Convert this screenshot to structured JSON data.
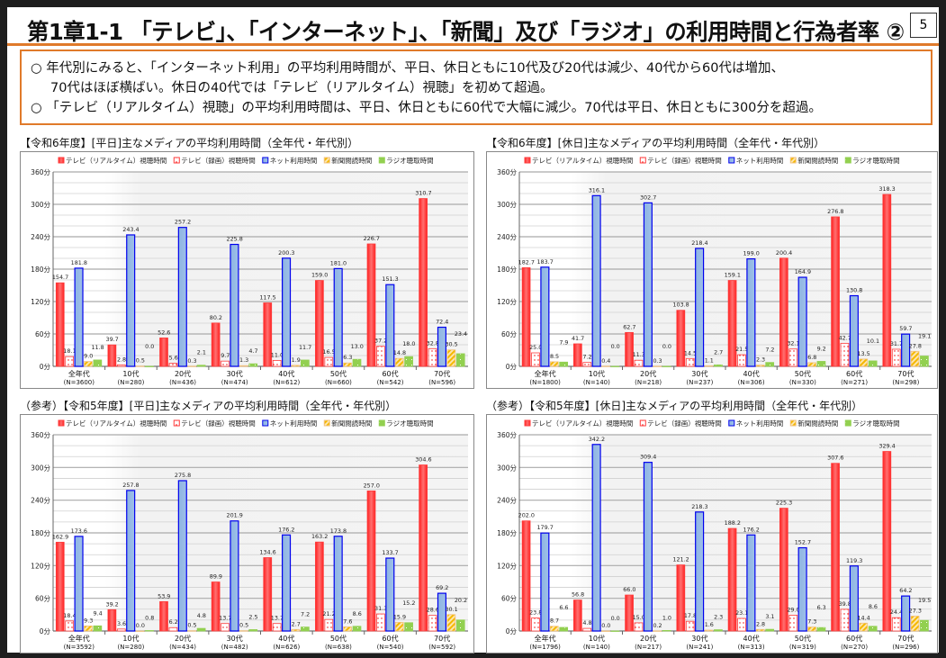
{
  "header": {
    "title": "第1章1-1 「テレビ」、「インターネット」、「新聞」及び「ラジオ」の利用時間と行為者率 ②",
    "page_number": "5"
  },
  "summary": {
    "line1": "○ 年代別にみると、「インターネット利用」の平均利用時間が、平日、休日ともに10代及び20代は減少、40代から60代は増加、",
    "line2": "70代はほぼ横ばい。休日の40代では「テレビ（リアルタイム）視聴」を初めて超過。",
    "line3": "○ 「テレビ（リアルタイム）視聴」の平均利用時間は、平日、休日ともに60代で大幅に減少。70代は平日、休日ともに300分を超過。"
  },
  "colors": {
    "accent_orange": "#e07a2a",
    "tv_realtime": "#ff3b3b",
    "tv_recorded": "#ff3b3b",
    "internet": "#8db4e2",
    "internet_border": "#0000ee",
    "newspaper": "#f5b800",
    "radio": "#92d050"
  },
  "legend": [
    "テレビ（リアルタイム）視聴時間",
    "テレビ（録画）視聴時間",
    "ネット利用時間",
    "新聞閲読時間",
    "ラジオ聴取時間"
  ],
  "chart_data": [
    {
      "type": "bar",
      "title": "【令和6年度】[平日]主なメディアの平均利用時間（全年代・年代別）",
      "categories": [
        "全年代",
        "10代",
        "20代",
        "30代",
        "40代",
        "50代",
        "60代",
        "70代"
      ],
      "category_n": [
        "(N=3600)",
        "(N=280)",
        "(N=436)",
        "(N=474)",
        "(N=612)",
        "(N=660)",
        "(N=542)",
        "(N=596)"
      ],
      "yticks": [
        "0分",
        "60分",
        "120分",
        "180分",
        "240分",
        "300分",
        "360分"
      ],
      "ylim": [
        0,
        360
      ],
      "grid": true,
      "legend_position": "top",
      "series": [
        {
          "name": "テレビ（リアルタイム）視聴時間",
          "values": [
            154.7,
            39.7,
            52.6,
            80.2,
            117.5,
            159.0,
            226.7,
            310.7
          ]
        },
        {
          "name": "テレビ（録画）視聴時間",
          "values": [
            18.1,
            2.8,
            5.6,
            9.7,
            11.0,
            16.5,
            37.2,
            32.8
          ]
        },
        {
          "name": "ネット利用時間",
          "values": [
            181.8,
            243.4,
            257.2,
            225.8,
            200.3,
            181.0,
            151.3,
            72.4
          ]
        },
        {
          "name": "新聞閲読時間",
          "values": [
            9.0,
            0.5,
            0.3,
            1.3,
            1.9,
            6.3,
            14.8,
            30.5
          ]
        },
        {
          "name": "ラジオ聴取時間",
          "values": [
            11.8,
            0.0,
            2.1,
            4.7,
            11.7,
            13.0,
            18.0,
            23.4
          ]
        }
      ]
    },
    {
      "type": "bar",
      "title": "【令和6年度】[休日]主なメディアの平均利用時間（全年代・年代別）",
      "categories": [
        "全年代",
        "10代",
        "20代",
        "30代",
        "40代",
        "50代",
        "60代",
        "70代"
      ],
      "category_n": [
        "(N=1800)",
        "(N=140)",
        "(N=218)",
        "(N=237)",
        "(N=306)",
        "(N=330)",
        "(N=271)",
        "(N=298)"
      ],
      "yticks": [
        "0分",
        "60分",
        "120分",
        "180分",
        "240分",
        "300分",
        "360分"
      ],
      "ylim": [
        0,
        360
      ],
      "grid": true,
      "legend_position": "top",
      "series": [
        {
          "name": "テレビ（リアルタイム）視聴時間",
          "values": [
            182.7,
            41.7,
            62.7,
            103.8,
            159.1,
            200.4,
            276.8,
            318.3
          ]
        },
        {
          "name": "テレビ（録画）視聴時間",
          "values": [
            25.0,
            7.2,
            11.3,
            14.5,
            21.5,
            32.1,
            42.7,
            31.7
          ]
        },
        {
          "name": "ネット利用時間",
          "values": [
            183.7,
            316.1,
            302.7,
            218.4,
            199.0,
            164.9,
            130.8,
            59.7
          ]
        },
        {
          "name": "新聞閲読時間",
          "values": [
            8.5,
            0.4,
            0.3,
            1.1,
            2.3,
            6.8,
            13.5,
            27.8
          ]
        },
        {
          "name": "ラジオ聴取時間",
          "values": [
            7.9,
            0.0,
            0.0,
            2.7,
            7.2,
            9.2,
            10.1,
            19.1
          ]
        }
      ]
    },
    {
      "type": "bar",
      "title": "（参考）【令和5年度】[平日]主なメディアの平均利用時間（全年代・年代別）",
      "categories": [
        "全年代",
        "10代",
        "20代",
        "30代",
        "40代",
        "50代",
        "60代",
        "70代"
      ],
      "category_n": [
        "(N=3592)",
        "(N=280)",
        "(N=434)",
        "(N=482)",
        "(N=626)",
        "(N=638)",
        "(N=540)",
        "(N=592)"
      ],
      "yticks": [
        "0分",
        "60分",
        "120分",
        "180分",
        "240分",
        "300分",
        "360分"
      ],
      "ylim": [
        0,
        360
      ],
      "grid": true,
      "legend_position": "top",
      "series": [
        {
          "name": "テレビ（リアルタイム）視聴時間",
          "values": [
            162.9,
            39.2,
            53.9,
            89.9,
            134.6,
            163.2,
            257.0,
            304.6
          ]
        },
        {
          "name": "テレビ（録画）視聴時間",
          "values": [
            18.4,
            3.6,
            6.2,
            13.7,
            13.7,
            21.2,
            31.3,
            28.6
          ]
        },
        {
          "name": "ネット利用時間",
          "values": [
            173.6,
            257.8,
            275.8,
            201.9,
            176.2,
            173.8,
            133.7,
            69.2
          ]
        },
        {
          "name": "新聞閲読時間",
          "values": [
            9.3,
            0.0,
            0.5,
            0.5,
            2.7,
            7.6,
            15.9,
            30.1
          ]
        },
        {
          "name": "ラジオ聴取時間",
          "values": [
            9.4,
            0.8,
            4.8,
            2.5,
            7.2,
            8.6,
            15.2,
            20.2
          ]
        }
      ]
    },
    {
      "type": "bar",
      "title": "（参考）【令和5年度】[休日]主なメディアの平均利用時間（全年代・年代別）",
      "categories": [
        "全年代",
        "10代",
        "20代",
        "30代",
        "40代",
        "50代",
        "60代",
        "70代"
      ],
      "category_n": [
        "(N=1796)",
        "(N=140)",
        "(N=217)",
        "(N=241)",
        "(N=313)",
        "(N=319)",
        "(N=270)",
        "(N=296)"
      ],
      "yticks": [
        "0分",
        "60分",
        "120分",
        "180分",
        "240分",
        "300分",
        "360分"
      ],
      "ylim": [
        0,
        360
      ],
      "grid": true,
      "legend_position": "top",
      "series": [
        {
          "name": "テレビ（リアルタイム）視聴時間",
          "values": [
            202.0,
            56.8,
            66.0,
            121.2,
            188.2,
            225.3,
            307.6,
            329.4
          ]
        },
        {
          "name": "テレビ（録画）視聴時間",
          "values": [
            23.8,
            4.8,
            15.0,
            17.8,
            23.1,
            29.0,
            39.8,
            24.4
          ]
        },
        {
          "name": "ネット利用時間",
          "values": [
            179.7,
            342.2,
            309.4,
            218.3,
            176.2,
            152.7,
            119.3,
            64.2
          ]
        },
        {
          "name": "新聞閲読時間",
          "values": [
            8.7,
            0.0,
            0.2,
            1.6,
            2.8,
            7.3,
            14.4,
            27.3
          ]
        },
        {
          "name": "ラジオ聴取時間",
          "values": [
            6.6,
            0.0,
            1.0,
            2.3,
            3.1,
            6.3,
            8.6,
            19.5
          ]
        }
      ]
    }
  ]
}
